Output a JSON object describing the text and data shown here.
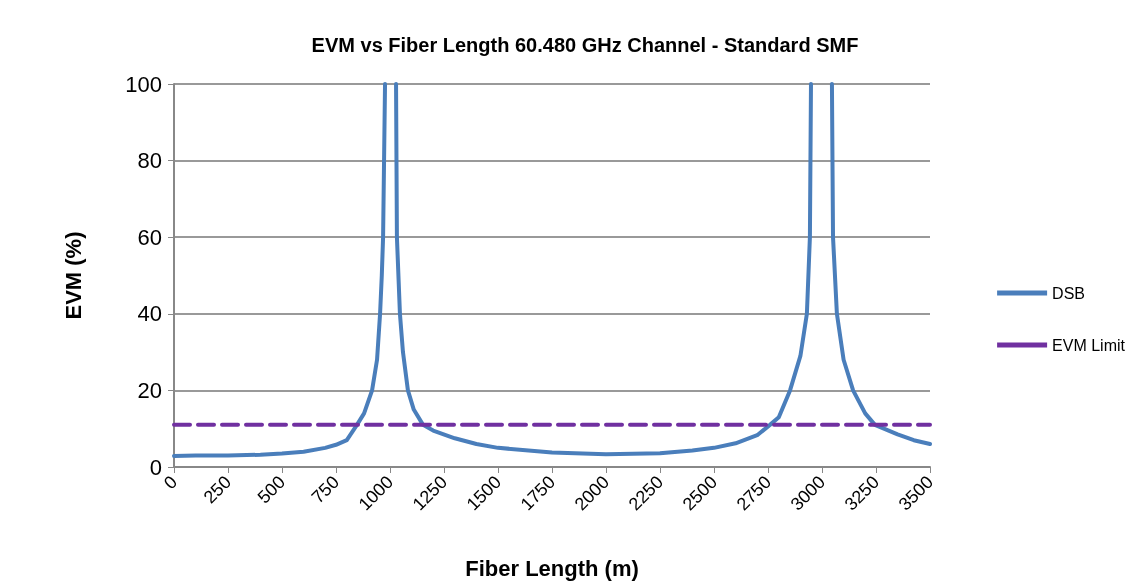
{
  "chart_data": {
    "type": "line",
    "title": "EVM vs Fiber Length 60.480 GHz Channel - Standard SMF",
    "xlabel": "Fiber Length (m)",
    "ylabel": "EVM (%)",
    "xlim": [
      0,
      3500
    ],
    "xticks": [
      0,
      250,
      500,
      750,
      1000,
      1250,
      1500,
      1750,
      2000,
      2250,
      2500,
      2750,
      3000,
      3250,
      3500
    ],
    "ylim": [
      0,
      100
    ],
    "yticks": [
      0,
      20,
      40,
      60,
      80,
      100
    ],
    "grid": "y",
    "legend": "right",
    "marker": "none",
    "series": [
      {
        "name": "DSB",
        "color": "#4a7ebb",
        "line_style": "solid",
        "x": [
          0,
          100,
          250,
          400,
          500,
          600,
          700,
          750,
          800,
          847,
          880,
          917,
          940,
          954,
          962,
          968,
          977,
          1000,
          1028,
          1032,
          1046,
          1060,
          1083,
          1110,
          1153,
          1200,
          1300,
          1400,
          1500,
          1750,
          2000,
          2250,
          2400,
          2500,
          2600,
          2700,
          2759,
          2800,
          2852,
          2900,
          2930,
          2944,
          2949,
          3000,
          3046,
          3051,
          3069,
          3100,
          3144,
          3200,
          3245,
          3350,
          3425,
          3500
        ],
        "values": [
          2.9,
          3.0,
          3.0,
          3.2,
          3.5,
          4.0,
          5.0,
          5.8,
          7.0,
          11,
          14,
          20,
          28,
          40,
          50,
          60,
          100,
          null,
          100,
          60,
          40,
          30,
          20,
          15,
          11,
          9.5,
          7.5,
          6,
          5,
          3.8,
          3.3,
          3.6,
          4.3,
          5,
          6.2,
          8.3,
          11,
          13,
          20,
          29,
          40,
          60,
          100,
          null,
          100,
          60,
          40,
          28,
          20,
          14,
          11,
          8.5,
          7,
          6.0
        ]
      },
      {
        "name": "EVM Limit",
        "color": "#7030a0",
        "line_style": "dashed",
        "x": [
          0,
          3500
        ],
        "values": [
          11,
          11
        ]
      }
    ]
  }
}
